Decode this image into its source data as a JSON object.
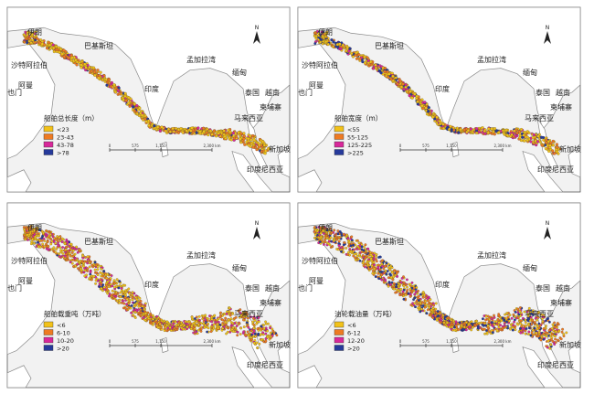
{
  "colors": {
    "c1": "#f2c21a",
    "c2": "#ee7a22",
    "c3": "#d8289a",
    "c4": "#263a9b"
  },
  "panels": [
    {
      "id": "ship-length",
      "legend": {
        "title": "船舶总长度（m）",
        "classes": [
          "<23",
          "23-43",
          "43-78",
          ">78"
        ]
      },
      "weights": [
        0.58,
        0.28,
        0.09,
        0.05
      ],
      "places": {
        "yilang": "伊朗",
        "bajisitan": "巴基斯坦",
        "shatealabo": "沙特阿拉伯",
        "aman": "阿曼",
        "yemen": "也门",
        "mengjialawan": "孟加拉湾",
        "yindu": "印度",
        "miandian": "缅甸",
        "taiguo": "泰国",
        "yuenan": "越南",
        "jianpuzhai": "柬埔寨",
        "malaixiya": "马来西亚",
        "xinjiapo": "新加坡",
        "yindunixiya": "印度尼西亚"
      }
    },
    {
      "id": "ship-width",
      "legend": {
        "title": "船舶宽度（m）",
        "classes": [
          "<55",
          "55-125",
          "125-225",
          ">225"
        ]
      },
      "weights": [
        0.55,
        0.18,
        0.12,
        0.15
      ],
      "places": {
        "yilang": "伊朗",
        "bajisitan": "巴基斯坦",
        "shatealabo": "沙特阿拉伯",
        "aman": "阿曼",
        "yemen": "也门",
        "mengjialawan": "孟加拉湾",
        "yindu": "印度",
        "miandian": "缅甸",
        "taiguo": "泰国",
        "yuenan": "越南",
        "jianpuzhai": "柬埔寨",
        "malaixiya": "马来西亚",
        "xinjiapo": "新加坡",
        "yindunixiya": "印度尼西亚"
      }
    },
    {
      "id": "ship-tonnage",
      "legend": {
        "title": "船舶载重吨（万吨）",
        "classes": [
          "<6",
          "6-10",
          "10-20",
          ">20"
        ]
      },
      "weights": [
        0.5,
        0.28,
        0.17,
        0.05
      ],
      "places": {
        "yilang": "伊朗",
        "bajisitan": "巴基斯坦",
        "shatealabo": "沙特阿拉伯",
        "aman": "阿曼",
        "yemen": "也门",
        "mengjialawan": "孟加拉湾",
        "yindu": "印度",
        "miandian": "缅甸",
        "taiguo": "泰国",
        "yuenan": "越南",
        "jianpuzhai": "柬埔寨",
        "malaixiya": "马来西亚",
        "xinjiapo": "新加坡",
        "yindunixiya": "印度尼西亚"
      }
    },
    {
      "id": "fuel-load",
      "legend": {
        "title": "油轮载油量（万吨）",
        "classes": [
          "<6",
          "6-12",
          "12-20",
          ">20"
        ]
      },
      "weights": [
        0.38,
        0.32,
        0.14,
        0.16
      ],
      "places": {
        "yilang": "伊朗",
        "bajisitan": "巴基斯坦",
        "shatealabo": "沙特阿拉伯",
        "aman": "阿曼",
        "yemen": "也门",
        "mengjialawan": "孟加拉湾",
        "yindu": "印度",
        "miandian": "缅甸",
        "taiguo": "泰国",
        "yuenan": "越南",
        "jianpuzhai": "柬埔寨",
        "malaixiya": "马来西亚",
        "xinjiapo": "新加坡",
        "yindunixiya": "印度尼西亚"
      }
    }
  ],
  "scalebar": {
    "ticks": [
      "0",
      "575",
      "1,150",
      "2,300 km"
    ]
  },
  "north_arrow_label": "N"
}
